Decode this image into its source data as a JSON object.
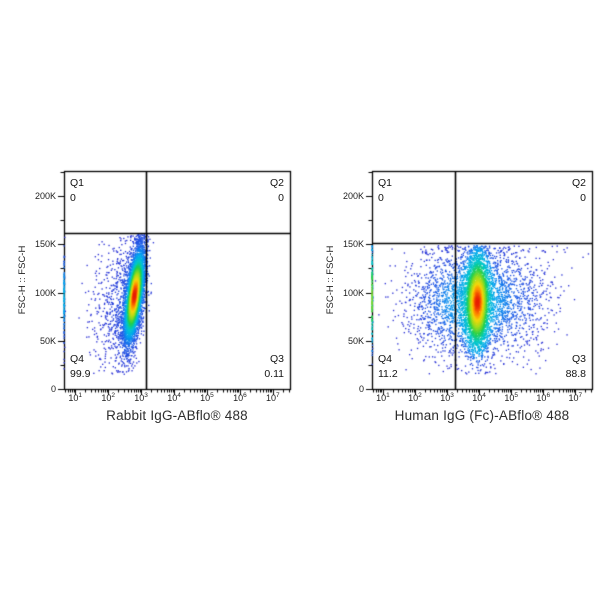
{
  "page": {
    "background": "#ffffff"
  },
  "styles": {
    "axis_color": "#000000",
    "gate_color": "#000000",
    "tick_text_color": "#1e1e1e",
    "quadrant_text_color": "#141414",
    "title_text_color": "#2e2e2e"
  },
  "colormap": {
    "name": "pseudocolor-jet",
    "stops": [
      [
        0.0,
        "#2b2fd4"
      ],
      [
        0.18,
        "#1f5fe8"
      ],
      [
        0.32,
        "#00a2f0"
      ],
      [
        0.46,
        "#00c8c8"
      ],
      [
        0.58,
        "#22cf4e"
      ],
      [
        0.72,
        "#9fdc1e"
      ],
      [
        0.84,
        "#f4d70e"
      ],
      [
        0.92,
        "#ff8c00"
      ],
      [
        1.0,
        "#e81e00"
      ]
    ]
  },
  "chart_data": [
    {
      "type": "scatter",
      "subtype": "flow-cytometry-pseudocolor-density",
      "xlabel": "Rabbit IgG-ABflo® 488",
      "ylabel": "FSC-H :: FSC-H",
      "x_scale": "log10",
      "x_log10_range": [
        0.66,
        7.52
      ],
      "x_tick_exponents": [
        1,
        2,
        3,
        4,
        5,
        6,
        7
      ],
      "y_range": [
        0,
        226000
      ],
      "y_ticks": [
        {
          "value": 0,
          "label": "0"
        },
        {
          "value": 50000,
          "label": "50K"
        },
        {
          "value": 100000,
          "label": "100K"
        },
        {
          "value": 150000,
          "label": "150K"
        },
        {
          "value": 200000,
          "label": "200K"
        }
      ],
      "y_minor_step": 25000,
      "gate": {
        "x_log10": 3.14,
        "y_value": 161500
      },
      "quadrants": {
        "q1": {
          "label": "Q1",
          "value": "0"
        },
        "q2": {
          "label": "Q2",
          "value": "0"
        },
        "q3": {
          "label": "Q3",
          "value": "0.11"
        },
        "q4": {
          "label": "Q4",
          "value": "99.9"
        }
      },
      "y_truncate": 160000,
      "clusters": [
        {
          "n": 4500,
          "cx": 2.8,
          "cy": 97000,
          "sx": 0.155,
          "sy": 25000,
          "rho": 0.6
        },
        {
          "n": 1100,
          "cx": 2.72,
          "cy": 92000,
          "sx": 0.42,
          "sx_right": 0.2,
          "sy": 33000,
          "rho": 0.35
        },
        {
          "n": 150,
          "cx": 2.0,
          "cy": 95000,
          "sx": 0.38,
          "sy": 30000,
          "rho": 0
        },
        {
          "n": 140,
          "cx": 0.662,
          "cy": 95000,
          "sx": 0.012,
          "sy": 26000,
          "rho": 0
        }
      ]
    },
    {
      "type": "scatter",
      "subtype": "flow-cytometry-pseudocolor-density",
      "xlabel": "Human IgG (Fc)-ABflo® 488",
      "ylabel": "FSC-H :: FSC-H",
      "x_scale": "log10",
      "x_log10_range": [
        0.66,
        7.52
      ],
      "x_tick_exponents": [
        1,
        2,
        3,
        4,
        5,
        6,
        7
      ],
      "y_range": [
        0,
        226000
      ],
      "y_ticks": [
        {
          "value": 0,
          "label": "0"
        },
        {
          "value": 50000,
          "label": "50K"
        },
        {
          "value": 100000,
          "label": "100K"
        },
        {
          "value": 150000,
          "label": "150K"
        },
        {
          "value": 200000,
          "label": "200K"
        }
      ],
      "y_minor_step": 25000,
      "gate": {
        "x_log10": 3.24,
        "y_value": 151000
      },
      "quadrants": {
        "q1": {
          "label": "Q1",
          "value": "0"
        },
        "q2": {
          "label": "Q2",
          "value": "0"
        },
        "q3": {
          "label": "Q3",
          "value": "88.8"
        },
        "q4": {
          "label": "Q4",
          "value": "11.2"
        }
      },
      "y_truncate": 148500,
      "clusters": [
        {
          "n": 3800,
          "cx": 3.95,
          "cy": 90000,
          "sx": 0.19,
          "sy": 24000,
          "rho": 0.05
        },
        {
          "n": 2600,
          "cx": 3.75,
          "cy": 90000,
          "sx": 0.95,
          "sy": 29000,
          "rho": 0
        },
        {
          "n": 350,
          "cx": 5.2,
          "cy": 95000,
          "sx": 0.85,
          "sy": 30000,
          "rho": 0
        },
        {
          "n": 160,
          "cx": 0.662,
          "cy": 95000,
          "sx": 0.012,
          "sy": 28000,
          "rho": 0
        }
      ]
    }
  ]
}
